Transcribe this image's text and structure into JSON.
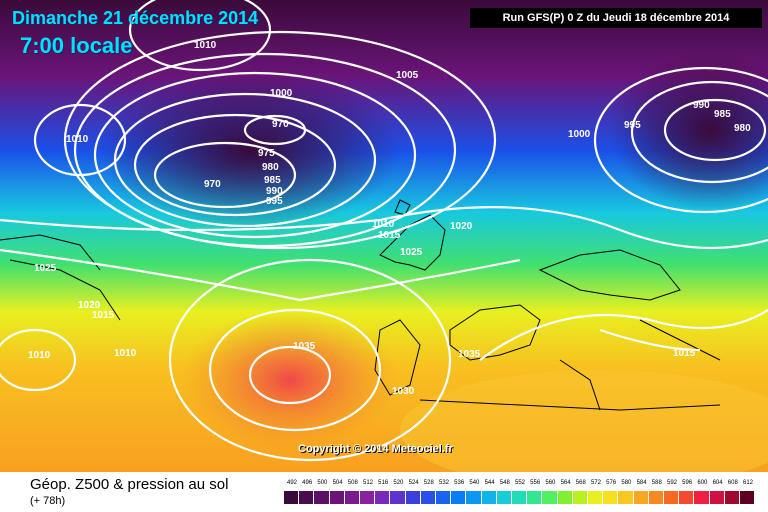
{
  "header": {
    "date": "Dimanche 21 décembre 2014",
    "time": "7:00 locale",
    "run_info": "Run GFS(P) 0 Z du Jeudi 18 décembre 2014"
  },
  "footer": {
    "product": "Géop. Z500 & pression au sol",
    "forecast_hour": "(+ 78h)",
    "copyright": "Copyright © 2014 Meteociel.fr"
  },
  "scale": {
    "values": [
      "492",
      "496",
      "500",
      "504",
      "508",
      "512",
      "516",
      "520",
      "524",
      "528",
      "532",
      "536",
      "540",
      "544",
      "548",
      "552",
      "556",
      "560",
      "564",
      "568",
      "572",
      "576",
      "580",
      "584",
      "588",
      "592",
      "596",
      "600",
      "604",
      "608",
      "612"
    ],
    "colors": [
      "#3a0a3a",
      "#4a0c4e",
      "#5a1064",
      "#6a1478",
      "#7a1a8c",
      "#8a22a0",
      "#7a2ab8",
      "#5a34cc",
      "#3a40dc",
      "#2a4ee8",
      "#1a62f0",
      "#0a7cf4",
      "#0a98f0",
      "#10b4e8",
      "#18ccd8",
      "#20dcb8",
      "#30e890",
      "#50f060",
      "#80f030",
      "#b8f020",
      "#e8f020",
      "#f8e020",
      "#f8c820",
      "#f8a820",
      "#f88820",
      "#f86820",
      "#f84830",
      "#f02040",
      "#d01040",
      "#a00830",
      "#600020"
    ]
  },
  "map": {
    "colors": {
      "deep_violet": "#3a0a3a",
      "violet": "#6a1478",
      "blue": "#1a50e8",
      "cyan": "#18c8e0",
      "green": "#40e070",
      "yellow": "#e8f020",
      "orange": "#f8a020",
      "red": "#f04848"
    },
    "isobar_labels": [
      "1010",
      "1005",
      "1000",
      "970",
      "975",
      "980",
      "985",
      "990",
      "995",
      "970",
      "1000",
      "995",
      "990",
      "985",
      "980",
      "1010",
      "1010",
      "1015",
      "1025",
      "1020",
      "1025",
      "1020",
      "1015",
      "1010",
      "1010",
      "1035",
      "1035",
      "1030",
      "1015"
    ]
  }
}
